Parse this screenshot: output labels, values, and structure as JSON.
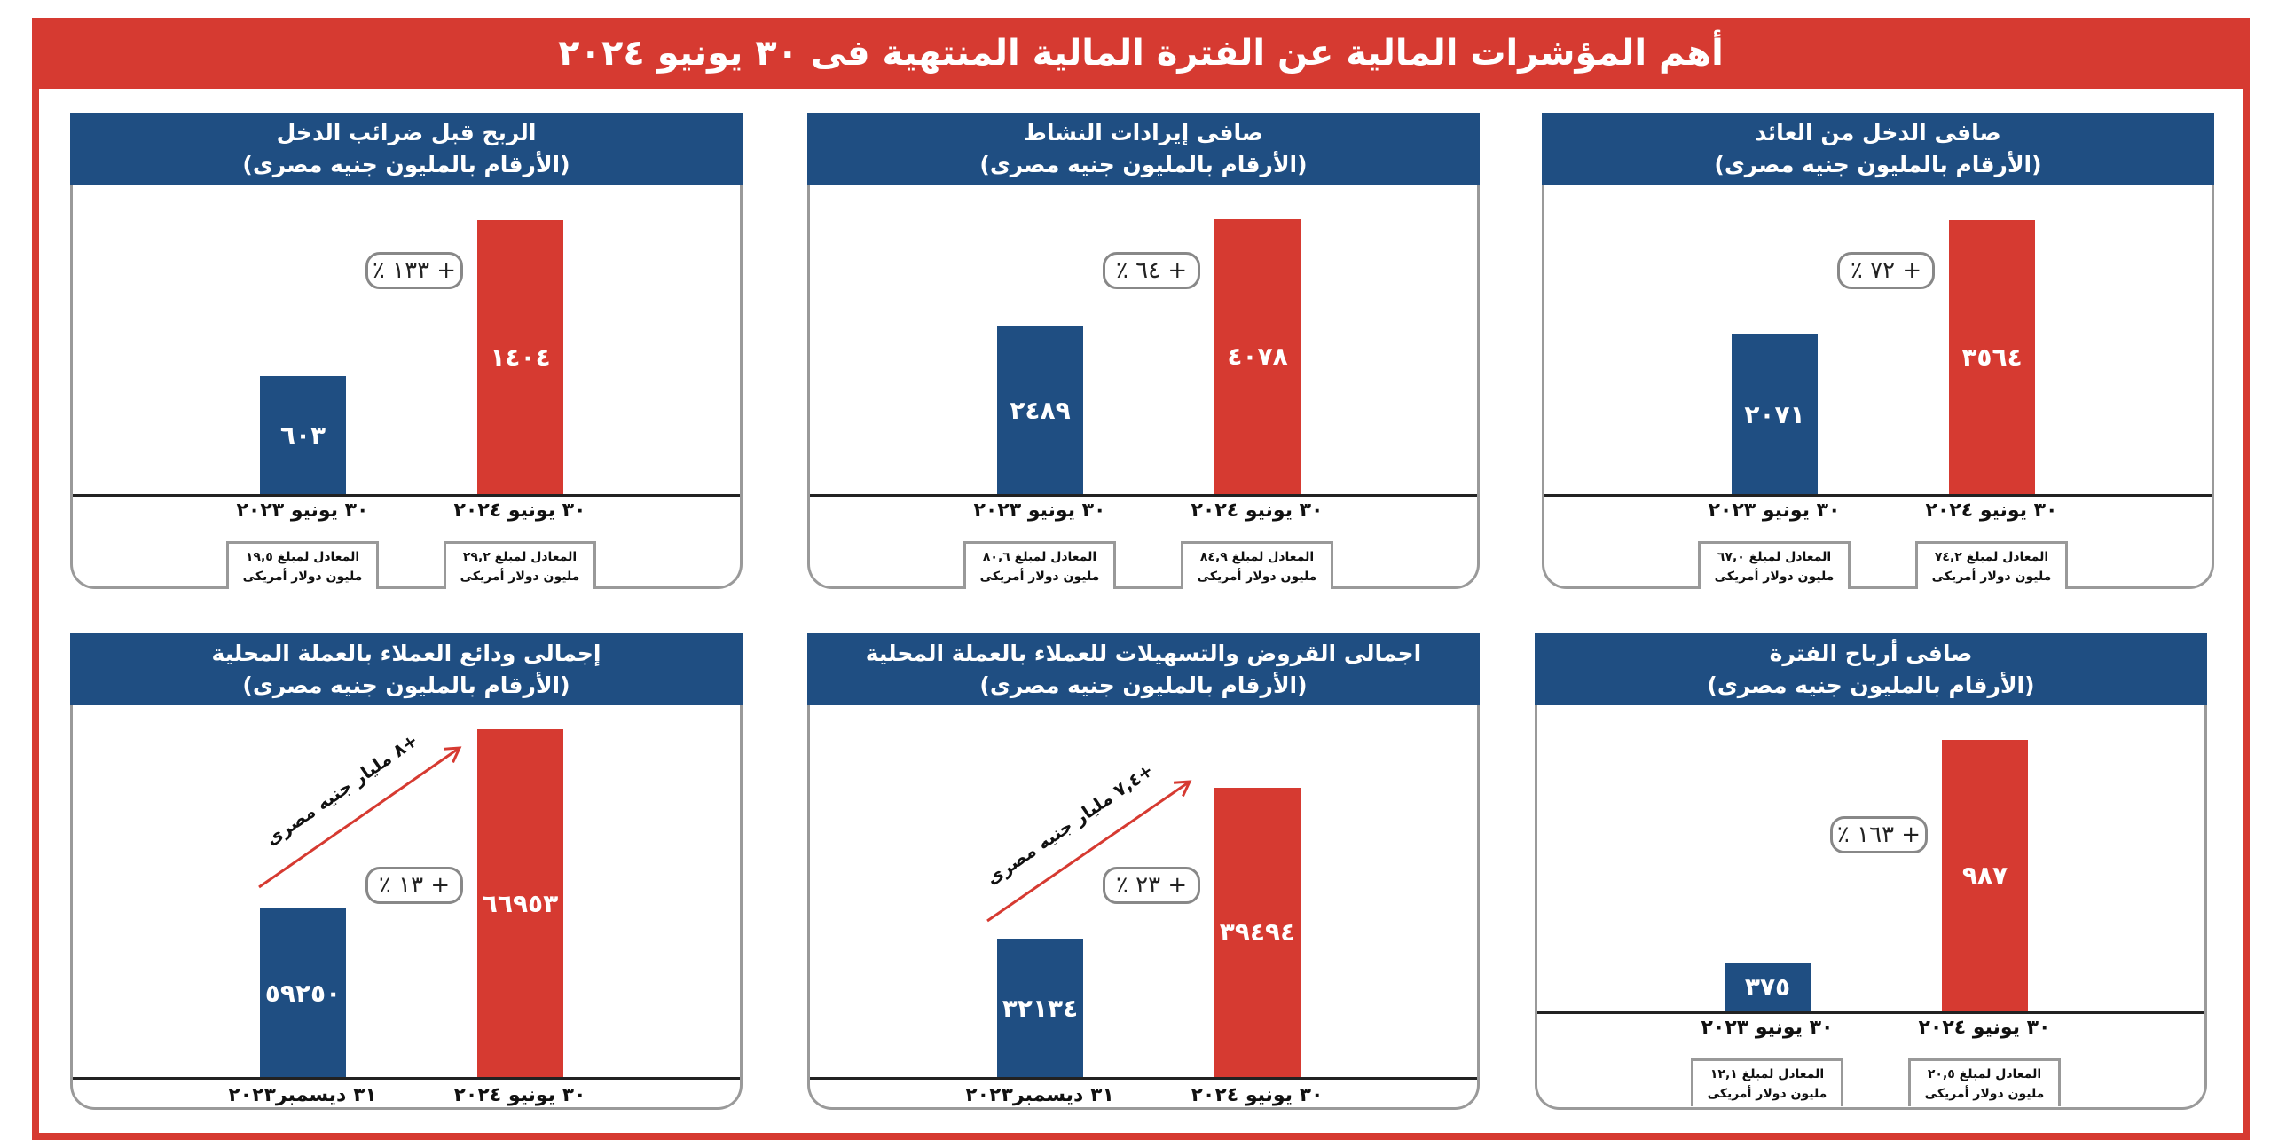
{
  "title": "أهم المؤشرات المالية عن الفترة المالية المنتهية فى ٣٠ يونيو ٢٠٢٤",
  "colors": {
    "frame": "#d63a31",
    "header": "#1f4e82",
    "previous": "#1f4e82",
    "current": "#d63a31"
  },
  "chart_data": [
    {
      "type": "bar",
      "title": "صافى الدخل من العائد",
      "subtitle": "(الأرقام بالمليون جنيه مصرى)",
      "categories": [
        "٣٠ يونيو ٢٠٢٣",
        "٣٠ يونيو ٢٠٢٤"
      ],
      "values": [
        2071,
        3564
      ],
      "value_labels": [
        "٢٠٧١",
        "٣٥٦٤"
      ],
      "change": "+ ٧٢ ٪",
      "usd": [
        "المعادل لمبلغ ٦٧,٠",
        "المعادل لمبلغ ٧٤,٢"
      ],
      "usd_unit": "مليون دولار أمريكى",
      "ylim": [
        0,
        4025
      ]
    },
    {
      "type": "bar",
      "title": "صافى إيرادات النشاط",
      "subtitle": "(الأرقام بالمليون جنيه مصرى)",
      "categories": [
        "٣٠ يونيو ٢٠٢٣",
        "٣٠ يونيو ٢٠٢٤"
      ],
      "values": [
        2489,
        4078
      ],
      "value_labels": [
        "٢٤٨٩",
        "٤٠٧٨"
      ],
      "change": "+ ٦٤ ٪",
      "usd": [
        "المعادل لمبلغ ٨٠,٦",
        "المعادل لمبلغ ٨٤,٩"
      ],
      "usd_unit": "مليون دولار أمريكى",
      "ylim": [
        0,
        4590
      ]
    },
    {
      "type": "bar",
      "title": "الربح قبل ضرائب الدخل",
      "subtitle": "(الأرقام بالمليون جنيه مصرى)",
      "categories": [
        "٣٠ يونيو ٢٠٢٣",
        "٣٠ يونيو ٢٠٢٤"
      ],
      "values": [
        603,
        1404
      ],
      "value_labels": [
        "٦٠٣",
        "١٤٠٤"
      ],
      "change": "+ ١٣٣ ٪",
      "usd": [
        "المعادل لمبلغ ١٩,٥",
        "المعادل لمبلغ ٢٩,٢"
      ],
      "usd_unit": "مليون دولار أمريكى",
      "ylim": [
        0,
        1585
      ]
    },
    {
      "type": "bar",
      "title": "صافى أرباح الفترة",
      "subtitle": "(الأرقام بالمليون جنيه مصرى)",
      "categories": [
        "٣٠ يونيو ٢٠٢٣",
        "٣٠ يونيو ٢٠٢٤"
      ],
      "values": [
        375,
        987
      ],
      "value_labels": [
        "٣٧٥",
        "٩٨٧"
      ],
      "change": "+ ١٦٣ ٪",
      "usd": [
        "المعادل لمبلغ ١٢,١",
        "المعادل لمبلغ ٢٠,٥"
      ],
      "usd_unit": "مليون دولار أمريكى",
      "ylim": [
        240,
        1082
      ]
    },
    {
      "type": "bar",
      "title": "اجمالى القروض والتسهيلات للعملاء بالعملة المحلية",
      "subtitle": "(الأرقام بالمليون جنيه مصرى)",
      "categories": [
        "٣١ ديسمبر٢٠٢٣",
        "٣٠ يونيو ٢٠٢٤"
      ],
      "values": [
        32134,
        39494
      ],
      "value_labels": [
        "٣٢١٣٤",
        "٣٩٤٩٤"
      ],
      "change": "+ ٢٣ ٪",
      "growth": "+٧,٤ مليار جنيه مصرى",
      "ylim": [
        25400,
        43500
      ]
    },
    {
      "type": "bar",
      "title": "إجمالى ودائع العملاء بالعملة المحلية",
      "subtitle": "(الأرقام بالمليون جنيه مصرى)",
      "categories": [
        "٣١ ديسمبر٢٠٢٣",
        "٣٠ يونيو ٢٠٢٤"
      ],
      "values": [
        59250,
        66953
      ],
      "value_labels": [
        "٥٩٢٥٠",
        "٦٦٩٥٣"
      ],
      "change": "+ ١٣ ٪",
      "growth": "+٨ مليار جنيه مصرى",
      "ylim": [
        52000,
        68000
      ]
    }
  ]
}
